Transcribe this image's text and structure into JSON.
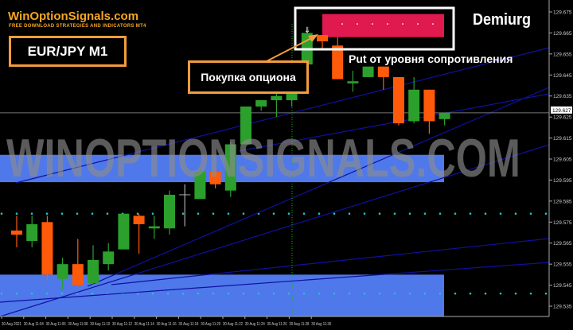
{
  "brand": {
    "name": "WinOptionSignals.com",
    "tagline": "FREE DOWNLOAD STRATEGIES AND INDICATORS MT4"
  },
  "symbol_label": "EUR/JPY M1",
  "indicator_name": "Demiurg",
  "watermark": "WINOPTIONSIGNALS.COM",
  "annotations": {
    "buy": "Покупка опциона",
    "put": "Put от уровня сопротивления"
  },
  "colors": {
    "bull": "#2ca02c",
    "bear": "#ff5a0a",
    "zone_support": "#4f78ea",
    "zone_resistance": "#e0194e",
    "dots": "#19c6c6",
    "trendline": "#1010a0",
    "frame": "#f39c3c"
  },
  "chart_data": {
    "type": "candlestick",
    "title": "",
    "ylim": [
      129.53,
      129.68
    ],
    "y_ticks": [
      "129.675",
      "129.665",
      "129.655",
      "129.645",
      "129.635",
      "129.625",
      "129.615",
      "129.605",
      "129.595",
      "129.585",
      "129.575",
      "129.565",
      "129.555",
      "129.545",
      "129.535"
    ],
    "x_ticks": [
      "30 Aug 2021",
      "30 Aug 11:04",
      "30 Aug 11:06",
      "30 Aug 11:08",
      "30 Aug 11:10",
      "30 Aug 11:12",
      "30 Aug 11:14",
      "30 Aug 11:16",
      "30 Aug 11:18",
      "30 Aug 11:20",
      "30 Aug 11:22",
      "30 Aug 11:24",
      "30 Aug 11:26",
      "30 Aug 11:28",
      "30 Aug 11:30"
    ],
    "current_price": "129.627",
    "candles": [
      {
        "o": 129.571,
        "h": 129.578,
        "l": 129.563,
        "c": 129.569
      },
      {
        "o": 129.566,
        "h": 129.578,
        "l": 129.563,
        "c": 129.574
      },
      {
        "o": 129.575,
        "h": 129.578,
        "l": 129.547,
        "c": 129.55
      },
      {
        "o": 129.548,
        "h": 129.558,
        "l": 129.543,
        "c": 129.555
      },
      {
        "o": 129.555,
        "h": 129.567,
        "l": 129.544,
        "c": 129.545
      },
      {
        "o": 129.546,
        "h": 129.564,
        "l": 129.545,
        "c": 129.557
      },
      {
        "o": 129.555,
        "h": 129.565,
        "l": 129.552,
        "c": 129.561
      },
      {
        "o": 129.562,
        "h": 129.579,
        "l": 129.562,
        "c": 129.579
      },
      {
        "o": 129.578,
        "h": 129.579,
        "l": 129.56,
        "c": 129.574
      },
      {
        "o": 129.572,
        "h": 129.578,
        "l": 129.567,
        "c": 129.573
      },
      {
        "o": 129.572,
        "h": 129.59,
        "l": 129.569,
        "c": 129.588
      },
      {
        "o": 129.588,
        "h": 129.593,
        "l": 129.573,
        "c": 129.588
      },
      {
        "o": 129.586,
        "h": 129.601,
        "l": 129.586,
        "c": 129.599
      },
      {
        "o": 129.599,
        "h": 129.602,
        "l": 129.591,
        "c": 129.593
      },
      {
        "o": 129.59,
        "h": 129.613,
        "l": 129.587,
        "c": 129.612
      },
      {
        "o": 129.612,
        "h": 129.63,
        "l": 129.612,
        "c": 129.63
      },
      {
        "o": 129.63,
        "h": 129.633,
        "l": 129.628,
        "c": 129.633
      },
      {
        "o": 129.633,
        "h": 129.637,
        "l": 129.625,
        "c": 129.635
      },
      {
        "o": 129.633,
        "h": 129.637,
        "l": 129.63,
        "c": 129.637
      },
      {
        "o": 129.65,
        "h": 129.666,
        "l": 129.65,
        "c": 129.665
      },
      {
        "o": 129.664,
        "h": 129.664,
        "l": 129.657,
        "c": 129.661
      },
      {
        "o": 129.659,
        "h": 129.663,
        "l": 129.643,
        "c": 129.643
      },
      {
        "o": 129.641,
        "h": 129.647,
        "l": 129.637,
        "c": 129.642
      },
      {
        "o": 129.644,
        "h": 129.649,
        "l": 129.644,
        "c": 129.649
      },
      {
        "o": 129.649,
        "h": 129.649,
        "l": 129.638,
        "c": 129.644
      },
      {
        "o": 129.644,
        "h": 129.644,
        "l": 129.621,
        "c": 129.622
      },
      {
        "o": 129.623,
        "h": 129.644,
        "l": 129.622,
        "c": 129.638
      },
      {
        "o": 129.638,
        "h": 129.638,
        "l": 129.617,
        "c": 129.623
      },
      {
        "o": 129.624,
        "h": 129.626,
        "l": 129.621,
        "c": 129.627
      }
    ],
    "zones": [
      {
        "type": "support",
        "top": 129.607,
        "bottom": 129.594
      },
      {
        "type": "support",
        "top": 129.55,
        "bottom": 129.53
      },
      {
        "type": "resistance",
        "top": 129.674,
        "bottom": 129.663
      }
    ],
    "dotted_levels": [
      129.579,
      129.541
    ]
  }
}
